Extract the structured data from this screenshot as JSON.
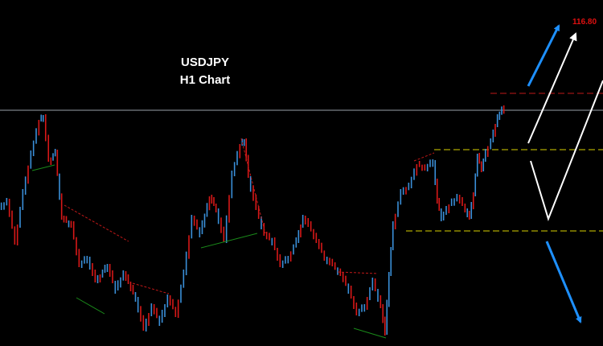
{
  "title": "USDJPY",
  "subtitle": "H1 Chart",
  "levels": [
    {
      "label": "116.80"
    }
  ]
}
